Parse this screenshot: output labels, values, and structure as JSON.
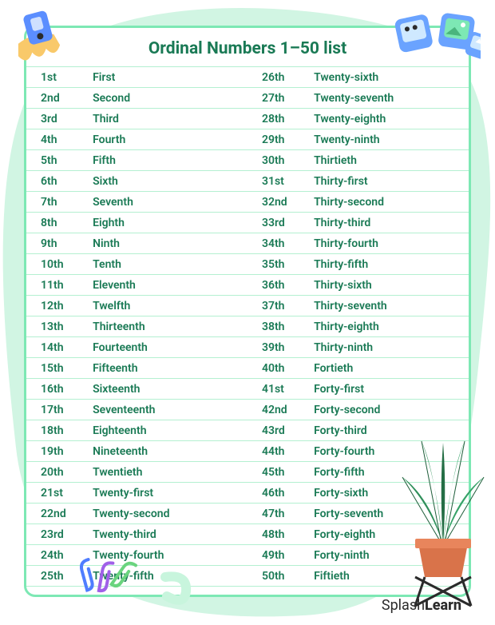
{
  "title": "Ordinal Numbers 1–50 list",
  "colors": {
    "text": "#1a7a55",
    "border": "#7de8b4",
    "rowline": "#b4f0d1",
    "blob": "#d1f5e3",
    "cardbg": "#ffffff"
  },
  "typography": {
    "title_fontsize": 21,
    "title_weight": 700,
    "cell_fontsize": 14,
    "cell_weight": 600
  },
  "brand": {
    "prefix": "Splash",
    "bold": "Learn"
  },
  "table": {
    "columns": [
      "short",
      "word",
      "short",
      "word"
    ],
    "rows": [
      [
        "1st",
        "First",
        "26th",
        "Twenty-sixth"
      ],
      [
        "2nd",
        "Second",
        "27th",
        "Twenty-seventh"
      ],
      [
        "3rd",
        "Third",
        "28th",
        "Twenty-eighth"
      ],
      [
        "4th",
        "Fourth",
        "29th",
        "Twenty-ninth"
      ],
      [
        "5th",
        "Fifth",
        "30th",
        "Thirtieth"
      ],
      [
        "6th",
        "Sixth",
        "31st",
        "Thirty-first"
      ],
      [
        "7th",
        "Seventh",
        "32nd",
        "Thirty-second"
      ],
      [
        "8th",
        "Eighth",
        "33rd",
        "Thirty-third"
      ],
      [
        "9th",
        "Ninth",
        "34th",
        "Thirty-fourth"
      ],
      [
        "10th",
        "Tenth",
        "35th",
        "Thirty-fifth"
      ],
      [
        "11th",
        "Eleventh",
        "36th",
        "Thirty-sixth"
      ],
      [
        "12th",
        "Twelfth",
        "37th",
        "Thirty-seventh"
      ],
      [
        "13th",
        "Thirteenth",
        "38th",
        "Thirty-eighth"
      ],
      [
        "14th",
        "Fourteenth",
        "39th",
        "Thirty-ninth"
      ],
      [
        "15th",
        "Fifteenth",
        "40th",
        "Fortieth"
      ],
      [
        "16th",
        "Sixteenth",
        "41st",
        "Forty-first"
      ],
      [
        "17th",
        "Seventeenth",
        "42nd",
        "Forty-second"
      ],
      [
        "18th",
        "Eighteenth",
        "43rd",
        "Forty-third"
      ],
      [
        "19th",
        "Nineteenth",
        "44th",
        "Forty-fourth"
      ],
      [
        "20th",
        "Twentieth",
        "45th",
        "Forty-fifth"
      ],
      [
        "21st",
        "Twenty-first",
        "46th",
        "Forty-sixth"
      ],
      [
        "22nd",
        "Twenty-second",
        "47th",
        "Forty-seventh"
      ],
      [
        "23rd",
        "Twenty-third",
        "48th",
        "Forty-eighth"
      ],
      [
        "24th",
        "Twenty-fourth",
        "49th",
        "Forty-ninth"
      ],
      [
        "25th",
        "Twenty-fifth",
        "50th",
        "Fiftieth"
      ]
    ]
  },
  "decorations": {
    "sharpener_color": "#5b8eff",
    "shavings_color": "#f9c96a",
    "photo_colors": [
      "#6aa3ff",
      "#7de8b4"
    ],
    "paperclip_colors": [
      "#4f7dff",
      "#a060e8",
      "#6ad47e"
    ],
    "squiggle_color": "#c8f5dd",
    "plant_pot": "#d9734a",
    "plant_leaves": "#2f8f5a"
  }
}
